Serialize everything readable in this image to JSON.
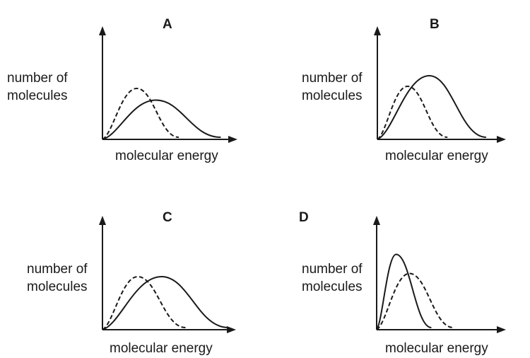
{
  "panels": [
    {
      "letter": "A",
      "ylabel_line1": "number of",
      "ylabel_line2": "molecules",
      "xlabel": "molecular energy",
      "curves": {
        "dashed": {
          "peak_energy": 0.27,
          "peak_height": 0.48,
          "end_energy": 0.6
        },
        "solid": {
          "peak_energy": 0.42,
          "peak_height": 0.37,
          "end_energy": 0.93
        }
      }
    },
    {
      "letter": "B",
      "ylabel_line1": "number of",
      "ylabel_line2": "molecules",
      "xlabel": "molecular energy",
      "curves": {
        "dashed": {
          "peak_energy": 0.25,
          "peak_height": 0.5,
          "end_energy": 0.58
        },
        "solid": {
          "peak_energy": 0.43,
          "peak_height": 0.6,
          "end_energy": 0.9
        }
      }
    },
    {
      "letter": "C",
      "ylabel_line1": "number of",
      "ylabel_line2": "molecules",
      "xlabel": "molecular energy",
      "curves": {
        "dashed": {
          "peak_energy": 0.28,
          "peak_height": 0.5,
          "end_energy": 0.66
        },
        "solid": {
          "peak_energy": 0.47,
          "peak_height": 0.5,
          "end_energy": 1.0
        }
      }
    },
    {
      "letter": "D",
      "ylabel_line1": "number of",
      "ylabel_line2": "molecules",
      "xlabel": "molecular energy",
      "curves": {
        "solid": {
          "peak_energy": 0.16,
          "peak_height": 0.71,
          "end_energy": 0.45
        },
        "dashed": {
          "peak_energy": 0.27,
          "peak_height": 0.53,
          "end_energy": 0.63
        }
      }
    }
  ]
}
